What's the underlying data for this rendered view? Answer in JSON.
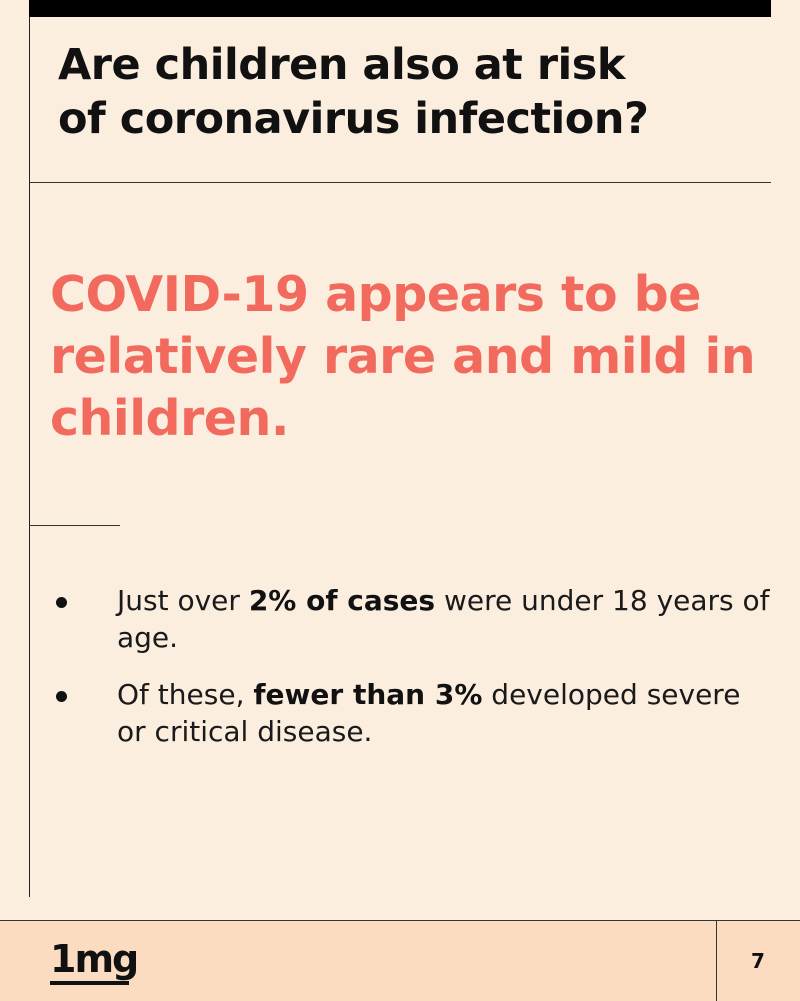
{
  "title": {
    "line1": "Are children also at risk",
    "line2": "of coronavirus infection?"
  },
  "headline": {
    "line1": "COVID-19 appears to be",
    "line2": "relatively rare and mild in",
    "line3": "children."
  },
  "bullets": [
    {
      "before": "Just over ",
      "bold": "2% of cases",
      "after": " were under 18 years of age."
    },
    {
      "before": "Of these, ",
      "bold": "fewer than 3%",
      "after": " developed severe or critical disease."
    }
  ],
  "footer": {
    "logo_text": "1mg",
    "page_number": "7"
  },
  "colors": {
    "background": "#fbeede",
    "accent": "#f16a5d",
    "footer_background": "#fcdcc0",
    "text": "#111111"
  }
}
